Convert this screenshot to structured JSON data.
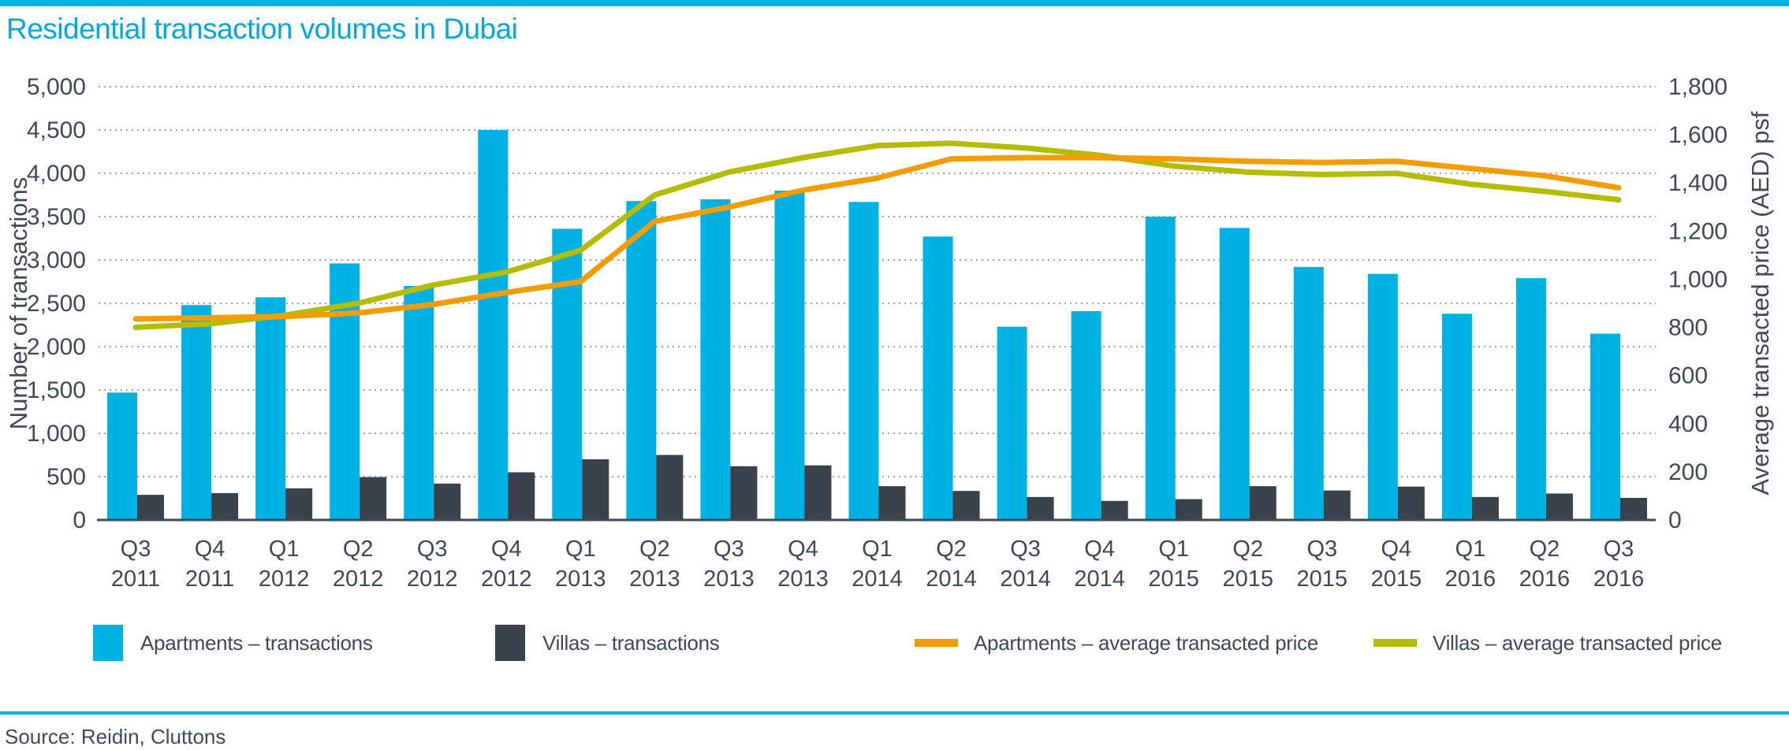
{
  "title": "Residential transaction volumes in Dubai",
  "source": "Source: Reidin, Cluttons",
  "colors": {
    "title_cyan": "#00a9e0",
    "rule_cyan": "#00b5e2",
    "bar_apartments": "#00b2e3",
    "bar_villas": "#3a434b",
    "line_apartments": "#f59c00",
    "line_villas": "#b5bd00",
    "axis_text": "#3f4a54",
    "gridline": "#9fa4a4",
    "axis_line": "#3f4a54"
  },
  "chart_data": {
    "type": "bar",
    "subtype": "combo bar + line, dual axis",
    "grid": "horizontal dotted",
    "categories": [
      "Q3 2011",
      "Q4 2011",
      "Q1 2012",
      "Q2 2012",
      "Q3 2012",
      "Q4 2012",
      "Q1 2013",
      "Q2 2013",
      "Q3 2013",
      "Q4 2013",
      "Q1 2014",
      "Q2 2014",
      "Q3 2014",
      "Q4 2014",
      "Q1 2015",
      "Q2 2015",
      "Q3 2015",
      "Q4 2015",
      "Q1 2016",
      "Q2 2016",
      "Q3 2016"
    ],
    "left_axis": {
      "label": "Number of transactions",
      "min": 0,
      "max": 5000,
      "step": 500
    },
    "right_axis": {
      "label": "Average transacted price (AED) psf",
      "min": 0,
      "max": 1800,
      "step": 200
    },
    "series": [
      {
        "name": "Apartments – transactions",
        "kind": "bar",
        "axis": "left",
        "values": [
          1470,
          2480,
          2570,
          2960,
          2700,
          4500,
          3360,
          3680,
          3700,
          3800,
          3670,
          3270,
          2230,
          2410,
          3500,
          3370,
          2920,
          2840,
          2380,
          2790,
          2150
        ]
      },
      {
        "name": "Villas – transactions",
        "kind": "bar",
        "axis": "left",
        "values": [
          290,
          310,
          365,
          495,
          420,
          550,
          700,
          750,
          620,
          630,
          390,
          335,
          265,
          220,
          240,
          390,
          340,
          385,
          265,
          305,
          255
        ]
      },
      {
        "name": "Apartments – average transacted price",
        "kind": "line",
        "axis": "right",
        "values": [
          835,
          840,
          845,
          860,
          895,
          945,
          990,
          1240,
          1300,
          1370,
          1420,
          1500,
          1505,
          1505,
          1500,
          1490,
          1485,
          1490,
          1460,
          1430,
          1380
        ]
      },
      {
        "name": "Villas – average transacted price",
        "kind": "line",
        "axis": "right",
        "values": [
          800,
          815,
          850,
          900,
          975,
          1030,
          1120,
          1350,
          1445,
          1505,
          1555,
          1565,
          1545,
          1515,
          1470,
          1445,
          1435,
          1440,
          1395,
          1365,
          1330
        ]
      }
    ]
  }
}
